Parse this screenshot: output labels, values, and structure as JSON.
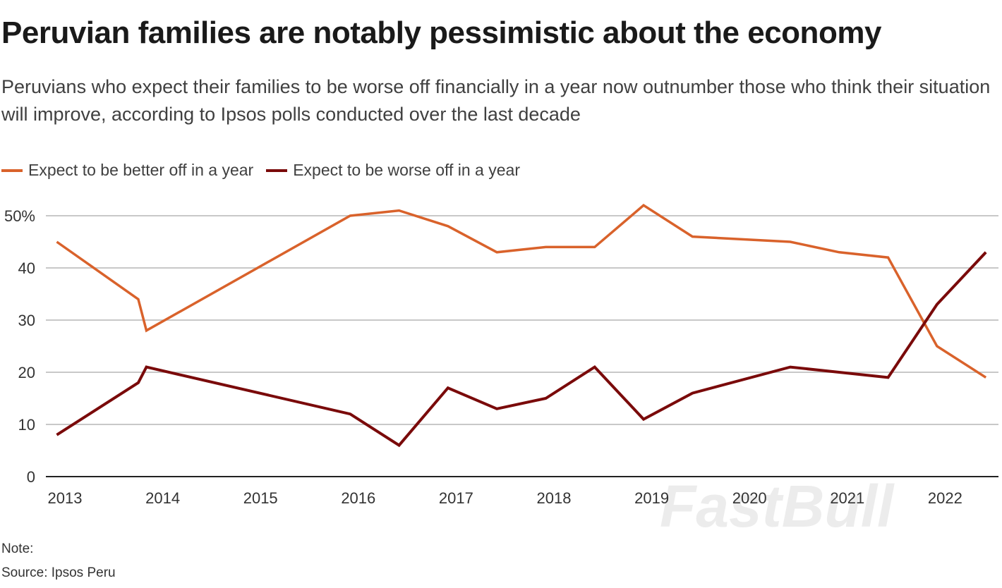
{
  "title": "Peruvian families are notably pessimistic about the economy",
  "subtitle": "Peruvians who expect their families to be worse off financially in a year now outnumber those who think their situation will improve, according to Ipsos polls conducted over the last decade",
  "note": "Note:",
  "source": "Source: Ipsos Peru",
  "watermark": "FastBull",
  "chart_data": {
    "type": "line",
    "title": "",
    "xlabel": "",
    "ylabel": "",
    "ylim": [
      0,
      50
    ],
    "yticks": [
      "0",
      "10",
      "20",
      "30",
      "40",
      "50%"
    ],
    "ytick_values": [
      0,
      10,
      20,
      30,
      40,
      50
    ],
    "xticks": [
      "2013",
      "2014",
      "2015",
      "2016",
      "2017",
      "2018",
      "2019",
      "2020",
      "2021",
      "2022"
    ],
    "grid": true,
    "legend": "top-left",
    "x": [
      "2012-12",
      "2013-10",
      "2013-11",
      "2015-12",
      "2016-06",
      "2016-12",
      "2017-06",
      "2017-12",
      "2018-06",
      "2018-12",
      "2019-06",
      "2020-06",
      "2020-12",
      "2021-06",
      "2021-12",
      "2022-06"
    ],
    "series": [
      {
        "name": "Expect to be better off in a year",
        "color": "#d9622b",
        "values": [
          45,
          34,
          28,
          50,
          51,
          48,
          43,
          44,
          44,
          52,
          46,
          45,
          43,
          42,
          25,
          19
        ]
      },
      {
        "name": "Expect to be worse off in a year",
        "color": "#7a0a0a",
        "values": [
          8,
          18,
          21,
          12,
          6,
          17,
          13,
          15,
          21,
          11,
          16,
          21,
          20,
          19,
          33,
          43
        ]
      }
    ]
  }
}
